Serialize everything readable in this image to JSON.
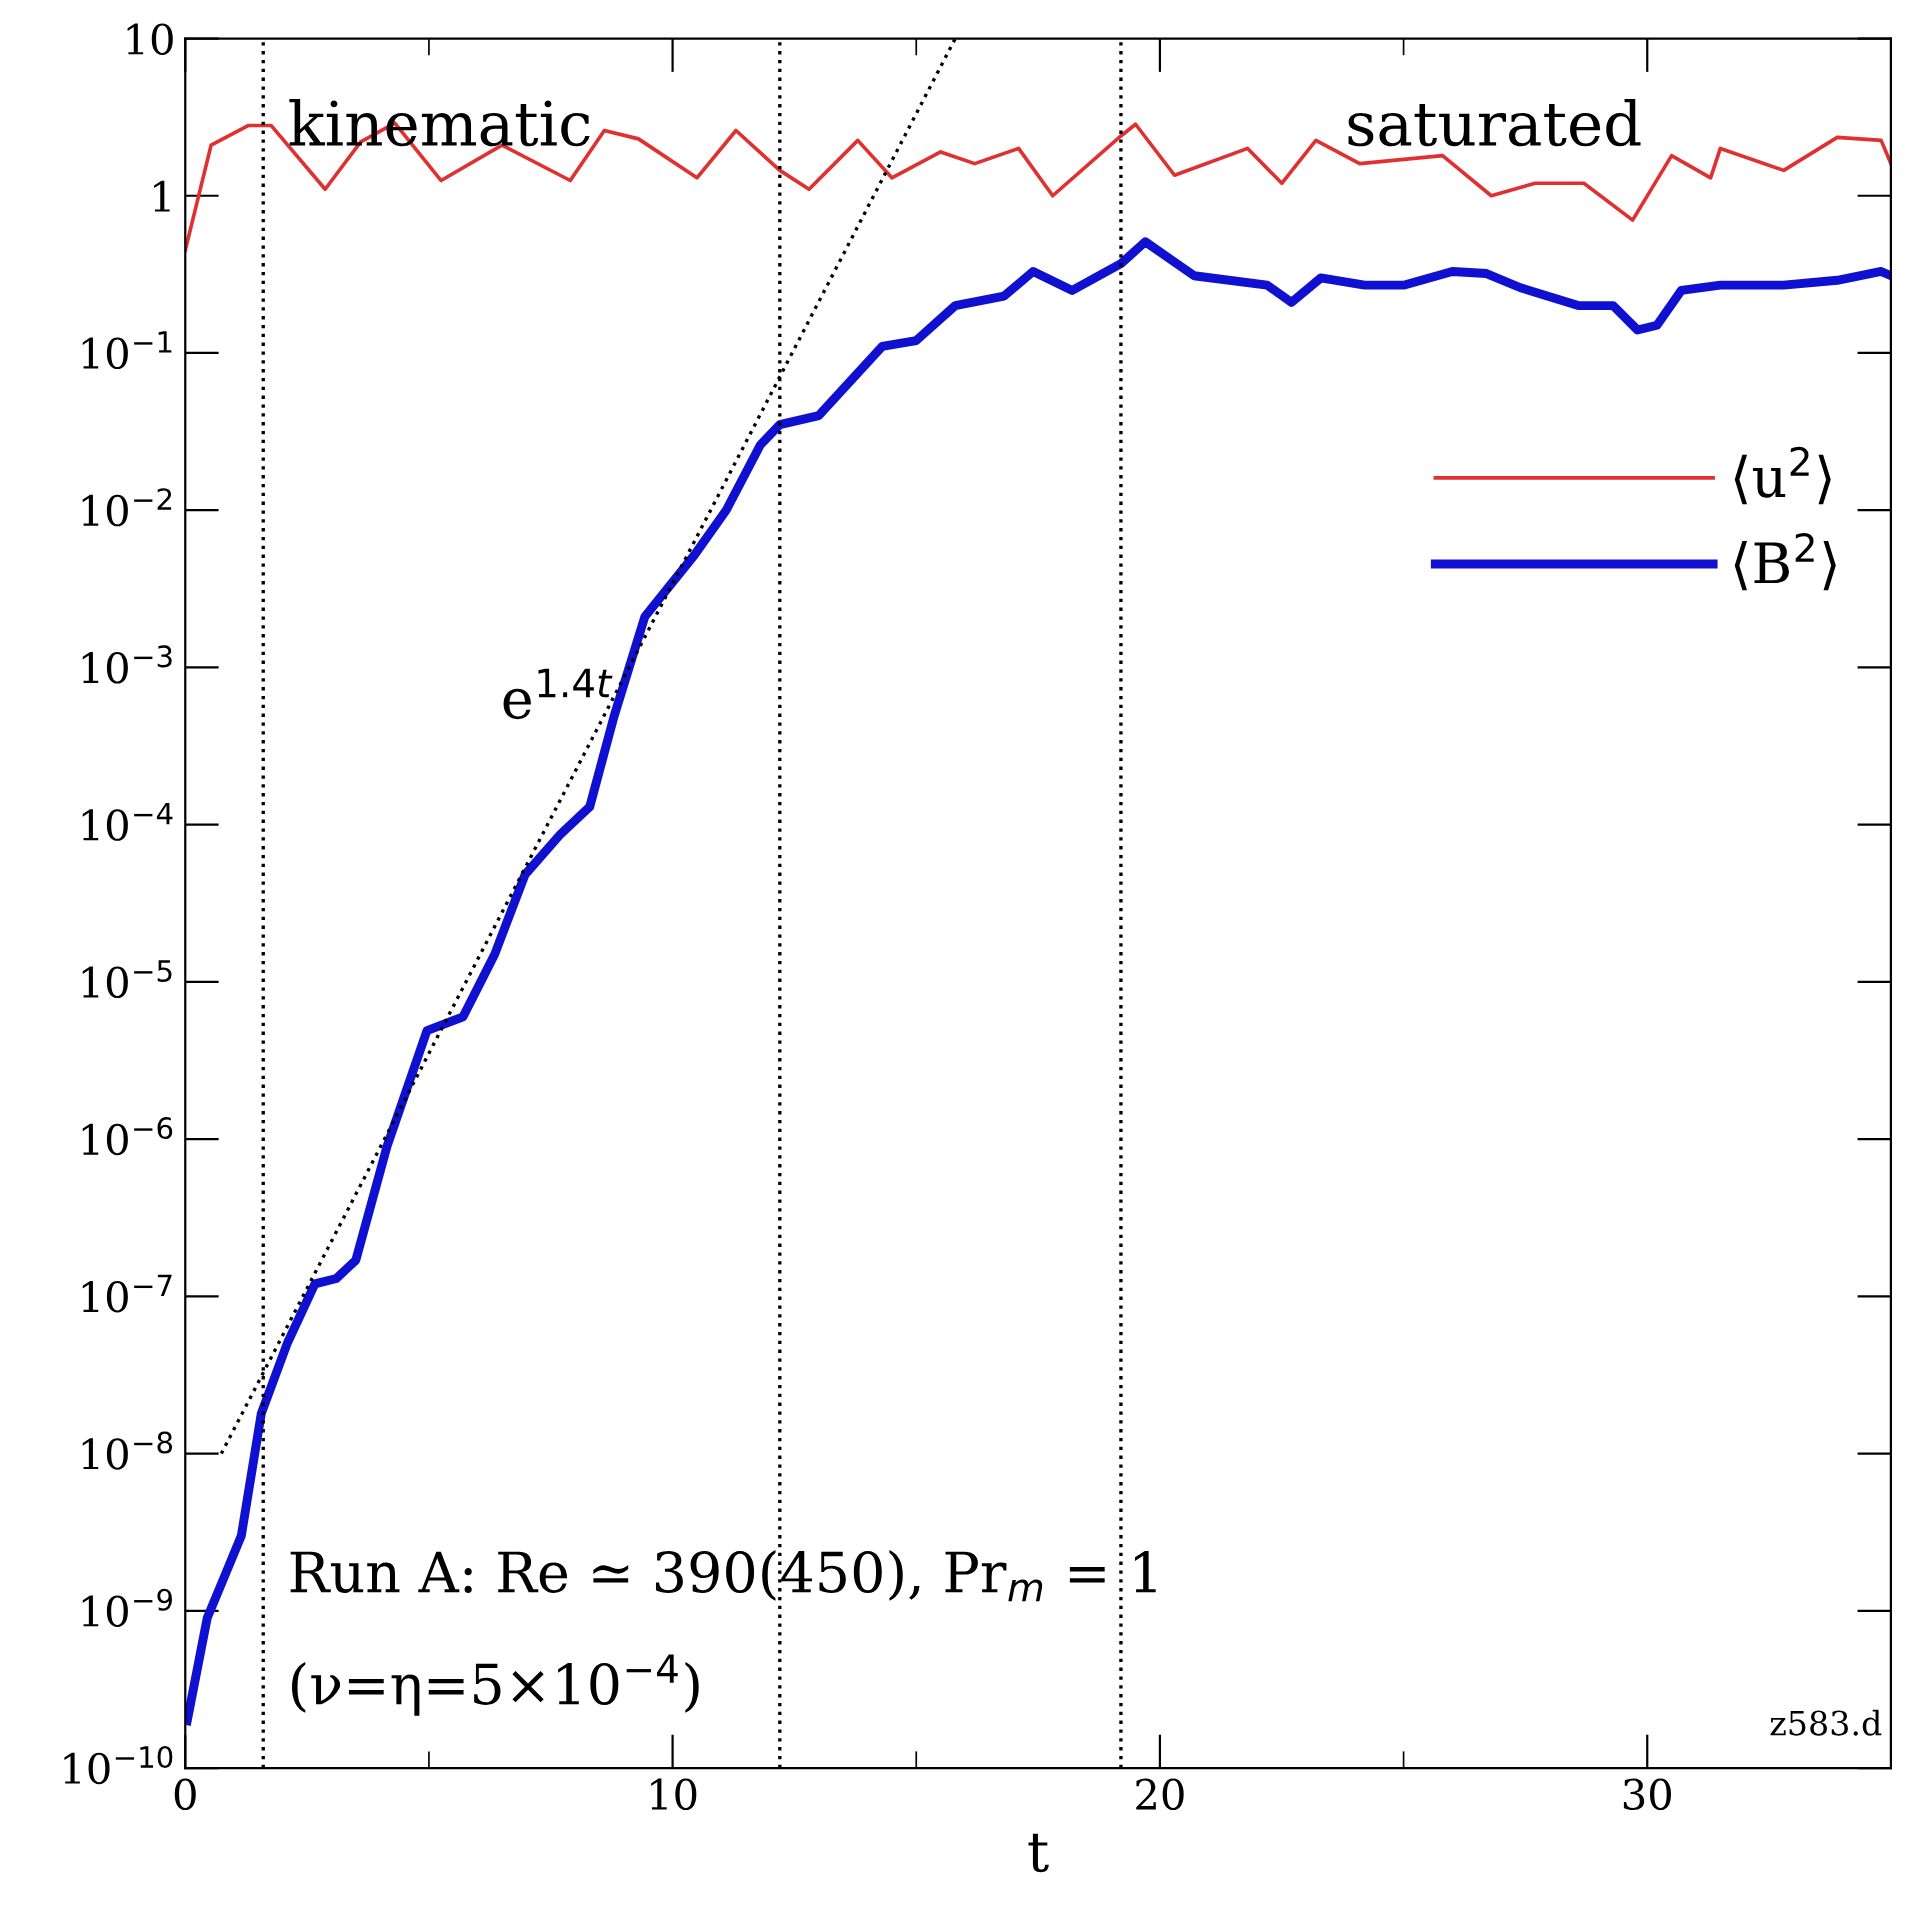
{
  "chart_data": {
    "type": "line",
    "xlabel": "t",
    "log": "y",
    "xlim": [
      0,
      35
    ],
    "ylim": [
      1e-10,
      10
    ],
    "xticks": [
      0,
      10,
      20,
      30
    ],
    "yticks": [
      {
        "value": 1e-10,
        "label": "10$^{−10}$"
      },
      {
        "value": 1e-09,
        "label": "10$^{−9}$"
      },
      {
        "value": 1e-08,
        "label": "10$^{−8}$"
      },
      {
        "value": 1e-07,
        "label": "10$^{−7}$"
      },
      {
        "value": 1e-06,
        "label": "10$^{−6}$"
      },
      {
        "value": 1e-05,
        "label": "10$^{−5}$"
      },
      {
        "value": 0.0001,
        "label": "10$^{−4}$"
      },
      {
        "value": 0.001,
        "label": "10$^{−3}$"
      },
      {
        "value": 0.01,
        "label": "10$^{−2}$"
      },
      {
        "value": 0.1,
        "label": "10$^{−1}$"
      },
      1,
      10
    ],
    "grid": false,
    "legend": "right",
    "line_style": "solid",
    "marker": "none",
    "series": [
      {
        "name": "⟨u$^{2}$⟩",
        "color": "#e03030",
        "x": [
          0,
          0.53,
          1.3,
          1.76,
          2.87,
          3.6,
          4.3,
          5.25,
          6.5,
          7.9,
          8.6,
          9.3,
          10.5,
          11.3,
          12.2,
          12.8,
          13.8,
          14.5,
          15.5,
          16.2,
          17.1,
          17.8,
          19.2,
          19.5,
          20.3,
          21.8,
          22.5,
          23.2,
          24.1,
          25.8,
          26.8,
          27.7,
          28.7,
          29.7,
          30.5,
          31.3,
          31.5,
          32.8,
          33.9,
          34.8,
          35
        ],
        "values": [
          0.45,
          2.1,
          2.8,
          2.8,
          1.1,
          2.2,
          2.9,
          1.25,
          2.1,
          1.25,
          2.6,
          2.3,
          1.3,
          2.6,
          1.45,
          1.1,
          2.25,
          1.3,
          1.9,
          1.6,
          2.0,
          1.0,
          2.4,
          2.85,
          1.35,
          2.0,
          1.2,
          2.25,
          1.6,
          1.8,
          1.0,
          1.2,
          1.2,
          0.7,
          1.8,
          1.3,
          2.0,
          1.45,
          2.35,
          2.25,
          1.6
        ]
      },
      {
        "name": "⟨B$^{2}$⟩",
        "color": "#1010d0",
        "x": [
          0.04,
          0.45,
          0.82,
          1.15,
          1.56,
          2.09,
          2.66,
          3.1,
          3.5,
          4.14,
          4.96,
          5.7,
          6.35,
          6.97,
          7.7,
          8.3,
          8.8,
          9.43,
          10.45,
          11.1,
          11.8,
          12.2,
          13.0,
          14.3,
          15.0,
          15.8,
          16.8,
          17.4,
          18.2,
          19.2,
          19.7,
          20.7,
          22.2,
          22.7,
          23.3,
          24.2,
          25.0,
          26.0,
          26.7,
          27.4,
          28.6,
          29.3,
          29.8,
          30.2,
          30.7,
          31.5,
          32.8,
          33.9,
          34.8,
          35
        ],
        "values": [
          2e-10,
          9e-10,
          1.7e-09,
          3e-09,
          1.8e-08,
          5e-08,
          1.2e-07,
          1.3e-07,
          1.7e-07,
          9e-07,
          4.9e-06,
          6e-06,
          1.5e-05,
          4.8e-05,
          8.7e-05,
          0.00013,
          0.00049,
          0.0021,
          0.0052,
          0.01,
          0.026,
          0.035,
          0.04,
          0.11,
          0.12,
          0.2,
          0.23,
          0.33,
          0.25,
          0.37,
          0.51,
          0.31,
          0.27,
          0.21,
          0.3,
          0.27,
          0.27,
          0.33,
          0.32,
          0.26,
          0.2,
          0.2,
          0.14,
          0.15,
          0.25,
          0.27,
          0.27,
          0.29,
          0.33,
          0.31
        ]
      },
      {
        "type": "line",
        "color": "#000000",
        "line_style": "dotted",
        "x": [
          0.74,
          15.8
        ],
        "values": [
          1e-08,
          10
        ]
      }
    ],
    "ref_lines": [
      {
        "axis": "x",
        "value": 1.6,
        "color": "#000000",
        "line_style": "dotted"
      },
      {
        "axis": "x",
        "value": 12.2,
        "color": "#000000",
        "line_style": "dotted"
      },
      {
        "axis": "x",
        "value": 19.2,
        "color": "#000000",
        "line_style": "dotted"
      }
    ],
    "annotations": [
      "kinematic",
      "saturated",
      "e$^{1.4t}$",
      "Run A: Re ≃ 390(450), Pr$_{m}$ = 1",
      "(ν=η=5×10$^{−4}$)",
      "z583.d"
    ]
  }
}
